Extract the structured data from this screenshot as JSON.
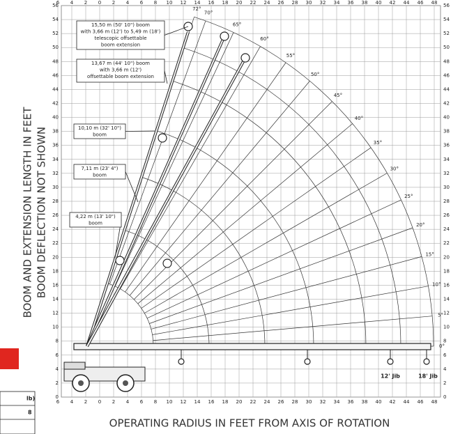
{
  "diagram": {
    "x_axis": {
      "title": "OPERATING RADIUS IN FEET FROM AXIS OF ROTATION",
      "ticks": [
        {
          "value": -6,
          "label": "6"
        },
        {
          "value": -4,
          "label": "4"
        },
        {
          "value": -2,
          "label": "2"
        },
        0,
        2,
        4,
        6,
        8,
        10,
        12,
        14,
        16,
        18,
        20,
        22,
        24,
        26,
        28,
        30,
        32,
        34,
        36,
        38,
        40,
        42,
        44,
        46,
        48
      ]
    },
    "y_axis": {
      "title_lines": [
        "BOOM AND EXTENSION LENGTH IN FEET",
        "BOOM DEFLECTION NOT SHOWN"
      ],
      "ticks": [
        0,
        2,
        4,
        6,
        8,
        10,
        12,
        14,
        16,
        18,
        20,
        22,
        24,
        26,
        28,
        30,
        32,
        34,
        36,
        38,
        40,
        42,
        44,
        46,
        48,
        50,
        52,
        54,
        56
      ]
    },
    "angles": [
      {
        "value": 0,
        "label": "0°"
      },
      {
        "value": 5,
        "label": "5°"
      },
      {
        "value": 10,
        "label": "10°"
      },
      {
        "value": 15,
        "label": "15°"
      },
      {
        "value": 20,
        "label": "20°"
      },
      {
        "value": 25,
        "label": "25°"
      },
      {
        "value": 30,
        "label": "30°"
      },
      {
        "value": 35,
        "label": "35°"
      },
      {
        "value": 40,
        "label": "40°"
      },
      {
        "value": 45,
        "label": "45°"
      },
      {
        "value": 50,
        "label": "50°"
      },
      {
        "value": 55,
        "label": "55°"
      },
      {
        "value": 60,
        "label": "60°"
      },
      {
        "value": 65,
        "label": "65°"
      },
      {
        "value": 70,
        "label": "70°"
      },
      {
        "value": 72,
        "label": "72°"
      }
    ],
    "boom_labels": [
      [
        "15,50 m (50' 10\") boom",
        "with 3,66 m (12') to 5,49 m (18')",
        "telescopic offsettable",
        "boom extension"
      ],
      [
        "13,67 m (44' 10\") boom",
        "with 3,66 m (12')",
        "offsettable boom extension"
      ],
      [
        "10,10 m (32' 10\")",
        "boom"
      ],
      [
        "7,11 m (23' 4\")",
        "boom"
      ],
      [
        "4,22 m (13' 10\")",
        "boom"
      ]
    ],
    "jib_labels": [
      "12' Jib",
      "18' Jib"
    ],
    "fragments": [
      "lb)",
      "8"
    ]
  }
}
